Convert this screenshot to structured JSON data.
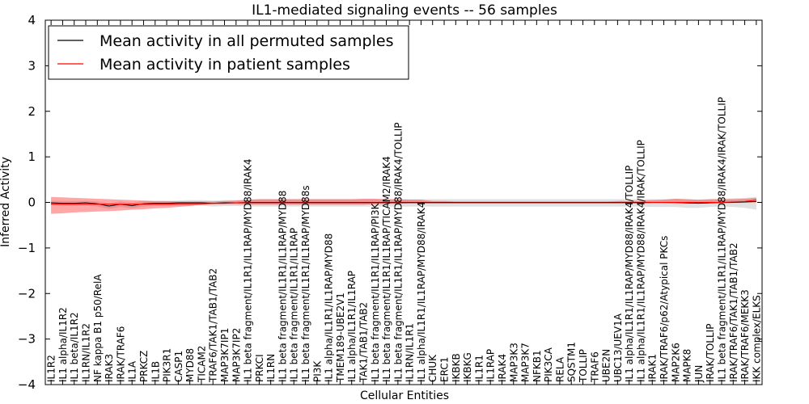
{
  "chart_data": {
    "type": "line",
    "title": "IL1-mediated signaling events -- 56 samples",
    "xlabel": "Cellular Entities",
    "ylabel": "Inferred Activity",
    "ylim": [
      -4,
      4
    ],
    "yticks": [
      -4,
      -3,
      -2,
      -1,
      0,
      1,
      2,
      3,
      4
    ],
    "ytick_labels": [
      "−4",
      "−3",
      "−2",
      "−1",
      "0",
      "1",
      "2",
      "3",
      "4"
    ],
    "legend_location": "top-left",
    "categories": [
      "IL1R2",
      "IL1 alpha/IL1R2",
      "IL1 beta/IL1R2",
      "IL1RN/IL1R2",
      "NF kappa B1 p50/RelA",
      "IRAK3",
      "IRAK/TRAF6",
      "IL1A",
      "PRKCZ",
      "IL1B",
      "PIK3R1",
      "CASP1",
      "MYD88",
      "TICAM2",
      "TRAF6/TAK1/TAB1/TAB2",
      "MAP3K7IP1",
      "MAP3K7IP2",
      "IL1 beta fragment/IL1R1/IL1RAP/MYD88/IRAK4",
      "PRKCI",
      "IL1RN",
      "IL1 beta fragment/IL1R1/IL1RAP/MYD88",
      "IL1 beta fragment/IL1R1/IL1RAP",
      "IL1 beta fragment/IL1R1/IL1RAP/MYD88s",
      "PI3K",
      "IL1 alpha/IL1R1/IL1RAP/MYD88",
      "TMEM189-UBE2V1",
      "IL1 alpha/IL1R1/IL1RAP",
      "TAK1/TAB1/TAB2",
      "IL1 beta fragment/IL1R1/IL1RAP/PI3K",
      "IL1 beta fragment/IL1R1/IL1RAP/TICAM2/IRAK4",
      "IL1 beta fragment/IL1R1/IL1RAP/MYD88/IRAK4/TOLLIP",
      "IL1RN/IL1R1",
      "IL1 alpha/IL1R1/IL1RAP/MYD88/IRAK4",
      "CHUK",
      "ERC1",
      "IKBKB",
      "IKBKG",
      "IL1R1",
      "IL1RAP",
      "IRAK4",
      "MAP3K3",
      "MAP3K7",
      "NFKB1",
      "PIK3CA",
      "RELA",
      "SQSTM1",
      "TOLLIP",
      "TRAF6",
      "UBE2N",
      "UBC13/UEV1A",
      "IL1 alpha/IL1R1/IL1RAP/MYD88/IRAK4/TOLLIP",
      "IL1 alpha/IL1R1/IL1RAP/MYD88/IRAK4/IRAK/TOLLIP",
      "IRAK1",
      "IRAK/TRAF6/p62/Atypical PKCs",
      "MAP2K6",
      "MAPK8",
      "JUN",
      "IRAK/TOLLIP",
      "IL1 beta fragment/IL1R1/IL1RAP/MYD88/IRAK4/IRAK/TOLLIP",
      "IRAK/TRAF6/TAK1/TAB1/TAB2",
      "IRAK/TRAF6/MEKK3",
      "IKK complex/ELKS"
    ],
    "series": [
      {
        "name": "Mean activity in all permuted samples",
        "color": "#000000",
        "values": [
          -0.01,
          -0.02,
          -0.02,
          -0.01,
          -0.03,
          -0.08,
          -0.04,
          -0.07,
          -0.03,
          -0.02,
          -0.02,
          -0.01,
          -0.01,
          -0.01,
          -0.02,
          -0.01,
          -0.01,
          0.0,
          0.0,
          0.0,
          0.0,
          0.0,
          0.0,
          0.0,
          0.0,
          0.0,
          0.0,
          0.0,
          0.0,
          0.0,
          0.0,
          0.0,
          0.0,
          0.0,
          0.0,
          0.0,
          0.0,
          0.0,
          0.0,
          0.0,
          0.0,
          0.0,
          0.0,
          0.0,
          0.0,
          0.0,
          0.0,
          0.0,
          0.0,
          0.0,
          0.0,
          0.0,
          0.0,
          0.0,
          0.0,
          -0.01,
          -0.02,
          -0.01,
          0.0,
          0.0,
          0.01,
          0.02
        ],
        "band_low": [
          -0.06,
          -0.08,
          -0.08,
          -0.07,
          -0.09,
          -0.14,
          -0.1,
          -0.13,
          -0.09,
          -0.08,
          -0.08,
          -0.07,
          -0.07,
          -0.07,
          -0.09,
          -0.08,
          -0.08,
          -0.09,
          -0.09,
          -0.09,
          -0.09,
          -0.09,
          -0.09,
          -0.09,
          -0.09,
          -0.09,
          -0.09,
          -0.09,
          -0.09,
          -0.09,
          -0.09,
          -0.09,
          -0.09,
          -0.09,
          -0.09,
          -0.09,
          -0.09,
          -0.09,
          -0.09,
          -0.09,
          -0.09,
          -0.09,
          -0.09,
          -0.09,
          -0.09,
          -0.09,
          -0.09,
          -0.09,
          -0.09,
          -0.09,
          -0.09,
          -0.09,
          -0.1,
          -0.1,
          -0.1,
          -0.12,
          -0.12,
          -0.1,
          -0.09,
          -0.1,
          -0.12,
          -0.16
        ],
        "band_high": [
          0.03,
          0.03,
          0.03,
          0.03,
          0.02,
          -0.02,
          0.02,
          -0.01,
          0.03,
          0.03,
          0.03,
          0.04,
          0.05,
          0.05,
          0.04,
          0.05,
          0.05,
          0.06,
          0.07,
          0.07,
          0.07,
          0.07,
          0.07,
          0.07,
          0.07,
          0.07,
          0.07,
          0.07,
          0.07,
          0.07,
          0.07,
          0.07,
          0.07,
          0.07,
          0.07,
          0.07,
          0.07,
          0.07,
          0.07,
          0.07,
          0.07,
          0.07,
          0.07,
          0.07,
          0.07,
          0.07,
          0.07,
          0.07,
          0.07,
          0.07,
          0.07,
          0.07,
          0.07,
          0.07,
          0.08,
          0.07,
          0.06,
          0.07,
          0.08,
          0.09,
          0.1,
          0.12
        ]
      },
      {
        "name": "Mean activity in patient samples",
        "color": "#ff0000",
        "values": [
          -0.04,
          -0.04,
          -0.04,
          -0.04,
          -0.04,
          -0.04,
          -0.04,
          -0.04,
          -0.04,
          -0.04,
          -0.04,
          -0.03,
          -0.03,
          -0.03,
          -0.02,
          -0.02,
          -0.01,
          -0.01,
          -0.01,
          -0.01,
          -0.01,
          -0.01,
          -0.01,
          -0.01,
          -0.01,
          -0.01,
          -0.01,
          -0.01,
          -0.01,
          -0.01,
          -0.01,
          -0.01,
          -0.01,
          -0.01,
          -0.01,
          -0.01,
          -0.01,
          -0.01,
          -0.01,
          -0.01,
          -0.01,
          -0.01,
          -0.01,
          -0.01,
          -0.01,
          -0.01,
          -0.01,
          -0.01,
          -0.01,
          -0.01,
          -0.01,
          -0.01,
          0.0,
          0.0,
          0.0,
          0.0,
          0.0,
          0.0,
          0.0,
          0.01,
          0.02,
          0.05
        ],
        "band_low": [
          -0.25,
          -0.24,
          -0.22,
          -0.21,
          -0.2,
          -0.19,
          -0.18,
          -0.16,
          -0.15,
          -0.13,
          -0.12,
          -0.1,
          -0.08,
          -0.05,
          -0.04,
          -0.04,
          -0.04,
          -0.05,
          -0.05,
          -0.05,
          -0.05,
          -0.05,
          -0.05,
          -0.05,
          -0.05,
          -0.05,
          -0.05,
          -0.05,
          -0.04,
          -0.03,
          -0.03,
          -0.02,
          -0.02,
          -0.02,
          -0.02,
          -0.02,
          -0.02,
          -0.02,
          -0.02,
          -0.02,
          -0.02,
          -0.02,
          -0.02,
          -0.02,
          -0.02,
          -0.02,
          -0.02,
          -0.02,
          -0.02,
          -0.02,
          -0.02,
          -0.02,
          -0.02,
          -0.02,
          -0.03,
          -0.03,
          -0.02,
          -0.02,
          -0.02,
          -0.01,
          0.0,
          0.0
        ],
        "band_high": [
          0.12,
          0.11,
          0.1,
          0.09,
          0.08,
          0.07,
          0.06,
          0.05,
          0.04,
          0.03,
          0.03,
          0.02,
          0.02,
          0.02,
          0.02,
          0.03,
          0.04,
          0.06,
          0.07,
          0.07,
          0.07,
          0.07,
          0.07,
          0.07,
          0.07,
          0.07,
          0.07,
          0.08,
          0.08,
          0.07,
          0.07,
          0.06,
          0.06,
          0.03,
          0.03,
          0.02,
          0.02,
          0.02,
          0.02,
          0.02,
          0.02,
          0.02,
          0.02,
          0.02,
          0.02,
          0.02,
          0.02,
          0.02,
          0.02,
          0.03,
          0.03,
          0.04,
          0.05,
          0.06,
          0.08,
          0.07,
          0.06,
          0.07,
          0.07,
          0.07,
          0.08,
          0.1
        ]
      }
    ]
  }
}
